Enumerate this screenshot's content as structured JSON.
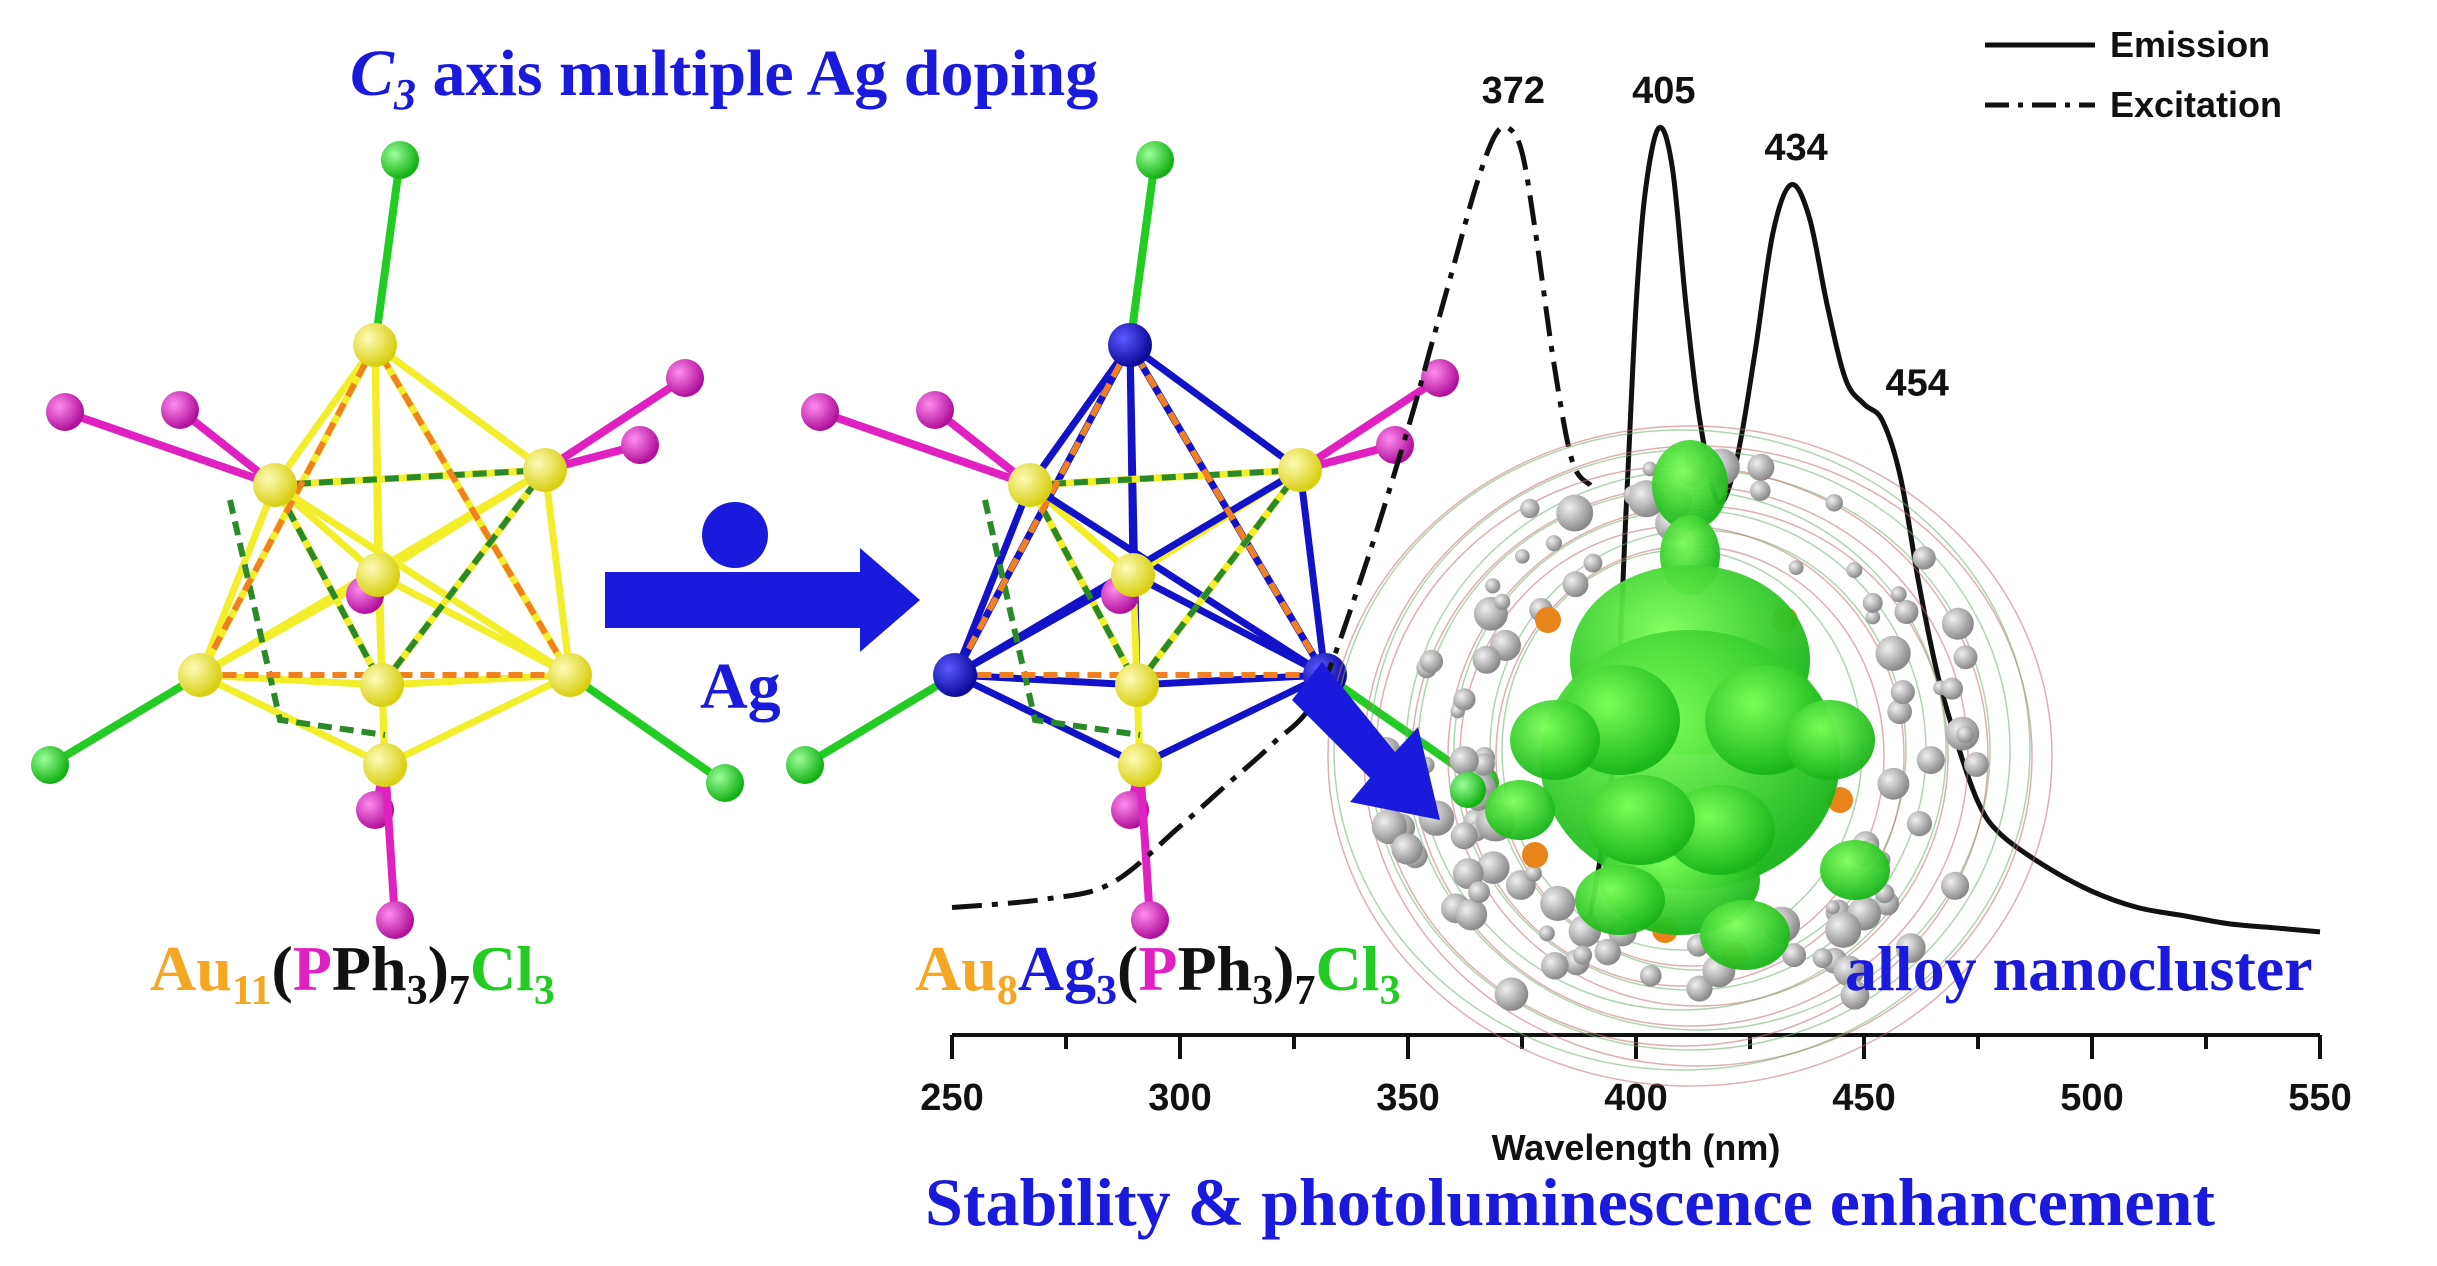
{
  "header": {
    "c3_letter": "C",
    "c3_sub": "3",
    "title_rest": " axis multiple Ag doping"
  },
  "arrow": {
    "label": "Ag"
  },
  "formula_left": {
    "parts": [
      {
        "t": "Au",
        "c": "orange"
      },
      {
        "t": "11",
        "c": "orange",
        "sub": true
      },
      {
        "t": "(",
        "c": "black"
      },
      {
        "t": "P",
        "c": "magenta"
      },
      {
        "t": "Ph",
        "c": "black"
      },
      {
        "t": "3",
        "c": "black",
        "sub": true
      },
      {
        "t": ")",
        "c": "black"
      },
      {
        "t": "7",
        "c": "black",
        "sub": true
      },
      {
        "t": "Cl",
        "c": "green"
      },
      {
        "t": "3",
        "c": "green",
        "sub": true
      }
    ]
  },
  "formula_right": {
    "parts": [
      {
        "t": "Au",
        "c": "orange"
      },
      {
        "t": "8",
        "c": "orange",
        "sub": true
      },
      {
        "t": "Ag",
        "c": "blue"
      },
      {
        "t": "3",
        "c": "blue",
        "sub": true
      },
      {
        "t": "(",
        "c": "black"
      },
      {
        "t": "P",
        "c": "magenta"
      },
      {
        "t": "Ph",
        "c": "black"
      },
      {
        "t": "3",
        "c": "black",
        "sub": true
      },
      {
        "t": ")",
        "c": "black"
      },
      {
        "t": "7",
        "c": "black",
        "sub": true
      },
      {
        "t": "Cl",
        "c": "green"
      },
      {
        "t": "3",
        "c": "green",
        "sub": true
      }
    ]
  },
  "labels": {
    "alloy": "alloy nanocluster",
    "bottom": "Stability & photoluminescence enhancement"
  },
  "colors": {
    "orange": "#f5a623",
    "magenta": "#e020c0",
    "green": "#22cc22",
    "blue": "#1a1adc",
    "black": "#111111",
    "gold": "#f2ee2a",
    "silver": "#1212c8"
  },
  "chart_data": {
    "type": "line",
    "xlabel": "Wavelength (nm)",
    "xlim": [
      250,
      550
    ],
    "x_ticks": [
      250,
      300,
      350,
      400,
      450,
      500,
      550
    ],
    "legend": {
      "placement": "top-right",
      "entries": [
        {
          "name": "Emission",
          "style": "solid"
        },
        {
          "name": "Excitation",
          "style": "dash-dot"
        }
      ]
    },
    "series": [
      {
        "name": "Excitation",
        "style": "dash-dot",
        "x": [
          250,
          270,
          285,
          300,
          310,
          320,
          330,
          340,
          350,
          355,
          360,
          365,
          369,
          372,
          375,
          378,
          382,
          386,
          390
        ],
        "y": [
          0.04,
          0.05,
          0.07,
          0.14,
          0.19,
          0.24,
          0.3,
          0.45,
          0.63,
          0.73,
          0.83,
          0.93,
          0.99,
          1.0,
          0.97,
          0.87,
          0.71,
          0.59,
          0.56
        ]
      },
      {
        "name": "Emission",
        "style": "solid",
        "x": [
          390,
          395,
          398,
          400,
          402,
          405,
          408,
          411,
          414,
          418,
          422,
          426,
          430,
          434,
          438,
          442,
          446,
          450,
          454,
          458,
          462,
          466,
          470,
          475,
          480,
          490,
          500,
          510,
          520,
          530,
          540,
          550
        ],
        "y": [
          0.03,
          0.22,
          0.55,
          0.78,
          0.92,
          1.0,
          0.95,
          0.78,
          0.64,
          0.54,
          0.59,
          0.72,
          0.87,
          0.93,
          0.89,
          0.78,
          0.69,
          0.66,
          0.64,
          0.57,
          0.44,
          0.33,
          0.25,
          0.17,
          0.13,
          0.09,
          0.06,
          0.04,
          0.03,
          0.02,
          0.015,
          0.01
        ]
      }
    ],
    "annotations": [
      {
        "text": "372",
        "x": 372,
        "y": 1.0,
        "series": "Excitation"
      },
      {
        "text": "405",
        "x": 405,
        "y": 1.0,
        "series": "Emission"
      },
      {
        "text": "434",
        "x": 434,
        "y": 0.93,
        "series": "Emission"
      },
      {
        "text": "454",
        "x": 454,
        "y": 0.64,
        "series": "Emission"
      }
    ]
  }
}
